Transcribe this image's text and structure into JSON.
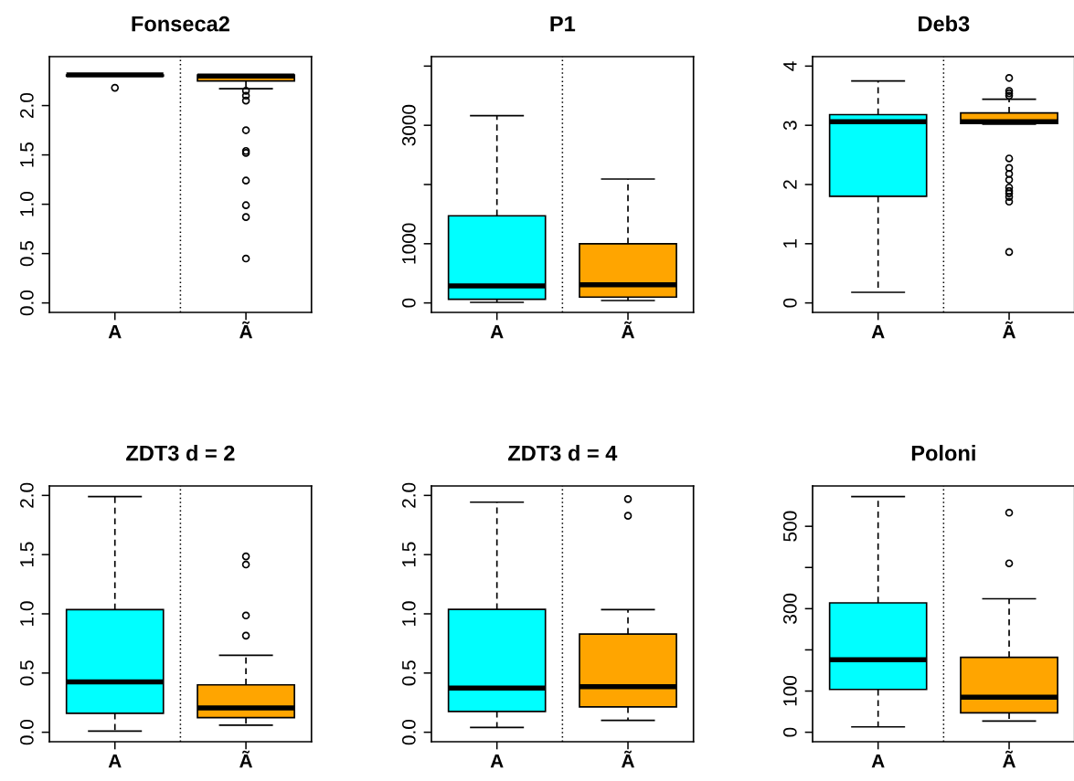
{
  "chart_data": [
    {
      "type": "box",
      "title": "Fonseca2",
      "categories": [
        "A",
        "Ã"
      ],
      "colors": [
        "#00ffff",
        "#ffa500"
      ],
      "boxes": [
        {
          "low": 2.3,
          "q1": 2.3,
          "median": 2.31,
          "q3": 2.31,
          "high": 2.32,
          "outliers": [
            2.18
          ]
        },
        {
          "low": 2.17,
          "q1": 2.25,
          "median": 2.3,
          "q3": 2.31,
          "high": 2.31,
          "outliers": [
            2.15,
            2.1,
            2.05,
            1.75,
            1.54,
            1.52,
            1.24,
            0.99,
            0.87,
            0.45
          ]
        }
      ],
      "ylim": [
        -0.096,
        2.496
      ],
      "yticks": [
        {
          "value": 0,
          "label": "0.0"
        },
        0.5,
        {
          "value": 1,
          "label": "1.0"
        },
        1.5,
        {
          "value": 2,
          "label": "2.0"
        }
      ],
      "line_style": "dashed",
      "marker": "circle"
    },
    {
      "type": "box",
      "title": "P1",
      "categories": [
        "A",
        "Ã"
      ],
      "colors": [
        "#00ffff",
        "#ffa500"
      ],
      "boxes": [
        {
          "low": 10,
          "q1": 62,
          "median": 288,
          "q3": 1472,
          "high": 3163
        },
        {
          "low": 41,
          "q1": 98,
          "median": 308,
          "q3": 1000,
          "high": 2092
        }
      ],
      "ylim": [
        -160,
        4160
      ],
      "yticks": [
        0,
        1000,
        {
          "value": 2000,
          "label": null
        },
        3000,
        {
          "value": 4000,
          "label": null
        }
      ],
      "line_style": "dashed",
      "marker": "circle"
    },
    {
      "type": "box",
      "title": "Deb3",
      "categories": [
        "A",
        "Ã"
      ],
      "colors": [
        "#00ffff",
        "#ffa500"
      ],
      "boxes": [
        {
          "low": 0.18,
          "q1": 1.8,
          "median": 3.06,
          "q3": 3.18,
          "high": 3.75
        },
        {
          "low": 3.02,
          "q1": 3.03,
          "median": 3.06,
          "q3": 3.21,
          "high": 3.44,
          "outliers": [
            3.8,
            3.58,
            3.54,
            3.5,
            2.44,
            2.28,
            2.18,
            2.08,
            1.95,
            1.89,
            1.85,
            1.79,
            1.71,
            0.86
          ]
        }
      ],
      "ylim": [
        -0.16,
        4.16
      ],
      "yticks": [
        0,
        1,
        2,
        3,
        4
      ],
      "line_style": "dashed",
      "marker": "circle"
    },
    {
      "type": "box",
      "title": "ZDT3 d = 2",
      "categories": [
        "A",
        "Ã"
      ],
      "colors": [
        "#00ffff",
        "#ffa500"
      ],
      "boxes": [
        {
          "low": 0.01,
          "q1": 0.16,
          "median": 0.425,
          "q3": 1.035,
          "high": 1.99
        },
        {
          "low": 0.06,
          "q1": 0.124,
          "median": 0.206,
          "q3": 0.4,
          "high": 0.65,
          "outliers": [
            1.485,
            1.416,
            0.986,
            0.816
          ]
        }
      ],
      "ylim": [
        -0.08,
        2.08
      ],
      "yticks": [
        {
          "value": 0,
          "label": "0.0"
        },
        0.5,
        {
          "value": 1,
          "label": "1.0"
        },
        1.5,
        {
          "value": 2,
          "label": "2.0"
        }
      ],
      "line_style": "dashed",
      "marker": "circle"
    },
    {
      "type": "box",
      "title": "ZDT3 d = 4",
      "categories": [
        "A",
        "Ã"
      ],
      "colors": [
        "#00ffff",
        "#ffa500"
      ],
      "boxes": [
        {
          "low": 0.04,
          "q1": 0.175,
          "median": 0.373,
          "q3": 1.037,
          "high": 1.943
        },
        {
          "low": 0.1,
          "q1": 0.214,
          "median": 0.384,
          "q3": 0.829,
          "high": 1.035,
          "outliers": [
            1.969,
            1.828
          ]
        }
      ],
      "ylim": [
        -0.08,
        2.08
      ],
      "yticks": [
        {
          "value": 0,
          "label": "0.0"
        },
        0.5,
        {
          "value": 1,
          "label": "1.0"
        },
        1.5,
        {
          "value": 2,
          "label": "2.0"
        }
      ],
      "line_style": "dashed",
      "marker": "circle"
    },
    {
      "type": "box",
      "title": "Poloni",
      "categories": [
        "A",
        "Ã"
      ],
      "colors": [
        "#00ffff",
        "#ffa500"
      ],
      "boxes": [
        {
          "low": 13,
          "q1": 104,
          "median": 176,
          "q3": 314,
          "high": 572
        },
        {
          "low": 27,
          "q1": 47,
          "median": 85,
          "q3": 182,
          "high": 324,
          "outliers": [
            533,
            410
          ]
        }
      ],
      "ylim": [
        -23,
        598
      ],
      "yticks": [
        0,
        100,
        {
          "value": 200,
          "label": null
        },
        300,
        {
          "value": 400,
          "label": null
        },
        500
      ],
      "line_style": "dashed",
      "marker": "circle"
    }
  ]
}
